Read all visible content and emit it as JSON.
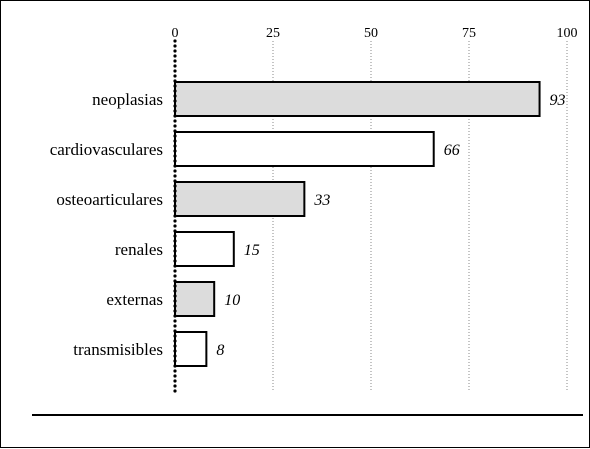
{
  "chart_data": {
    "type": "bar",
    "orientation": "horizontal",
    "categories": [
      "neoplasias",
      "cardiovasculares",
      "osteoarticulares",
      "renales",
      "externas",
      "transmisibles"
    ],
    "values": [
      93,
      66,
      33,
      15,
      10,
      8
    ],
    "data_labels": [
      "93",
      "66",
      "33",
      "15",
      "10",
      "8"
    ],
    "bar_fills": [
      "#dcdcdc",
      "#ffffff",
      "#dcdcdc",
      "#ffffff",
      "#dcdcdc",
      "#ffffff"
    ],
    "title": "",
    "xlabel": "",
    "ylabel": "",
    "xlim": [
      0,
      100
    ],
    "xticks": [
      0,
      25,
      50,
      75,
      100
    ],
    "xtick_labels": [
      "0",
      "25",
      "50",
      "75",
      "100"
    ],
    "x_axis_position": "top",
    "grid": "vertical-dotted",
    "legend": "none"
  }
}
